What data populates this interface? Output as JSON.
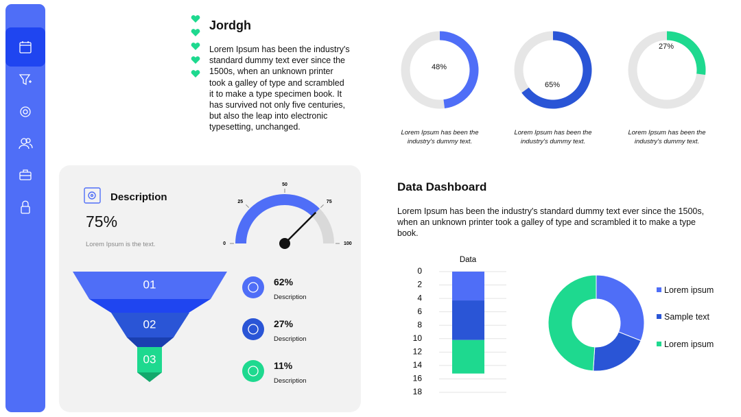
{
  "header": {
    "title": "Jordgh",
    "body": "Lorem Ipsum has been the industry's standard dummy text ever since the 1500s, when an unknown printer took a galley of type and scrambled it to make a type specimen book. It has survived not only five centuries, but also the leap into electronic typesetting, unchanged."
  },
  "rings": [
    {
      "value": 48,
      "label": "48%",
      "color": "#4f6ef7",
      "caption": "Lorem Ipsum has been the industry's dummy text."
    },
    {
      "value": 65,
      "label": "65%",
      "color": "#2a55d6",
      "caption": "Lorem Ipsum has been the industry's dummy text."
    },
    {
      "value": 27,
      "label": "27%",
      "color": "#1ed98f",
      "caption": "Lorem Ipsum has been the industry's dummy text."
    }
  ],
  "card": {
    "title": "Description",
    "value": "75%",
    "note": "Lorem Ipsum is the text.",
    "gauge": {
      "value": 75,
      "lim": [
        0,
        100
      ],
      "ticks": [
        0,
        25,
        50,
        75,
        100
      ],
      "color": "#4f6ef7"
    },
    "funnel": [
      "01",
      "02",
      "03"
    ],
    "stats": [
      {
        "label": "62%",
        "caption": "Description",
        "color": "#4f6ef7"
      },
      {
        "label": "27%",
        "caption": "Description",
        "color": "#2a55d6"
      },
      {
        "label": "11%",
        "caption": "Description",
        "color": "#1ed98f"
      }
    ]
  },
  "dashboard": {
    "title": "Data Dashboard",
    "body": "Lorem Ipsum has been the industry's standard dummy text ever since the 1500s, when an unknown printer took a galley of type and scrambled it to make a type book.",
    "bar": {
      "title": "Data",
      "ylim": [
        0,
        18
      ],
      "yticks": [
        0,
        2,
        4,
        6,
        8,
        10,
        12,
        14,
        16,
        18
      ],
      "values": [
        4.3,
        5.9,
        5.0
      ],
      "colors": [
        "#4f6ef7",
        "#2a55d6",
        "#1ed98f"
      ]
    },
    "donut": {
      "categories": [
        "Lorem ipsum",
        "Sample text",
        "Lorem ipsum"
      ],
      "values": [
        31,
        20,
        49
      ],
      "colors": [
        "#4f6ef7",
        "#2a55d6",
        "#1ed98f"
      ]
    }
  }
}
